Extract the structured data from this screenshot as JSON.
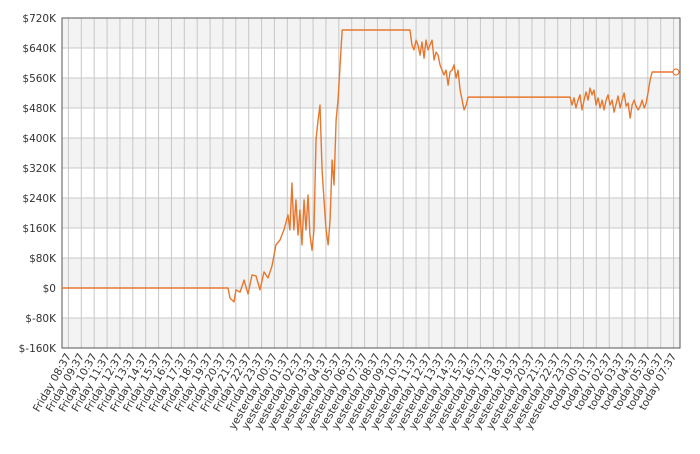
{
  "chart_data": {
    "type": "line",
    "color": "#e8772e",
    "grid": true,
    "x": [
      -0.5,
      12.39,
      12.55,
      12.86,
      13.01,
      13.33,
      13.64,
      13.95,
      14.26,
      14.57,
      14.88,
      15.19,
      15.5,
      15.81,
      16.12,
      16.43,
      16.74,
      17.05,
      17.2,
      17.36,
      17.51,
      17.67,
      17.83,
      17.98,
      18.14,
      18.3,
      18.45,
      18.61,
      18.76,
      18.92,
      19.07,
      19.23,
      19.39,
      19.54,
      19.7,
      19.85,
      20.01,
      20.17,
      20.32,
      20.48,
      20.63,
      20.79,
      20.94,
      21.1,
      21.26,
      26.53,
      26.68,
      26.84,
      27.0,
      27.15,
      27.31,
      27.46,
      27.62,
      27.77,
      27.93,
      28.08,
      28.24,
      28.4,
      28.55,
      28.71,
      28.86,
      29.02,
      29.17,
      29.33,
      29.49,
      29.64,
      29.8,
      29.95,
      30.11,
      30.26,
      30.42,
      30.58,
      30.73,
      30.89,
      31.04,
      38.96,
      39.11,
      39.27,
      39.42,
      39.58,
      39.73,
      39.89,
      40.05,
      40.2,
      40.36,
      40.51,
      40.67,
      40.82,
      40.98,
      41.14,
      41.29,
      41.45,
      41.6,
      41.76,
      41.91,
      42.07,
      42.23,
      42.38,
      42.54,
      42.69,
      42.85,
      43.0,
      43.16,
      43.32,
      43.47,
      43.63,
      43.78,
      43.94,
      44.09,
      44.25,
      44.41,
      44.56,
      44.72,
      44.87,
      45.03,
      45.18,
      45.34,
      47.19
    ],
    "values": [
      0,
      0,
      -27000,
      -37000,
      -5000,
      -11000,
      21000,
      -16000,
      35000,
      32000,
      -5000,
      43000,
      27000,
      59000,
      115000,
      128000,
      155000,
      195000,
      155000,
      280000,
      155000,
      235000,
      141000,
      208000,
      115000,
      235000,
      155000,
      248000,
      141000,
      101000,
      155000,
      395000,
      448000,
      488000,
      315000,
      235000,
      155000,
      115000,
      181000,
      341000,
      275000,
      448000,
      501000,
      595000,
      688000,
      688000,
      648000,
      635000,
      661000,
      648000,
      621000,
      656000,
      613000,
      661000,
      635000,
      648000,
      661000,
      608000,
      629000,
      621000,
      595000,
      581000,
      568000,
      581000,
      541000,
      576000,
      581000,
      595000,
      560000,
      581000,
      528000,
      501000,
      475000,
      488000,
      509000,
      509000,
      488000,
      507000,
      480000,
      501000,
      515000,
      475000,
      501000,
      523000,
      501000,
      533000,
      515000,
      528000,
      488000,
      507000,
      480000,
      501000,
      475000,
      501000,
      515000,
      488000,
      501000,
      469000,
      491000,
      512000,
      480000,
      501000,
      520000,
      485000,
      493000,
      453000,
      488000,
      501000,
      485000,
      475000,
      485000,
      501000,
      480000,
      493000,
      523000,
      555000,
      576000,
      576000
    ],
    "xlim": [
      -0.5,
      47.5
    ],
    "xticks": [
      {
        "value": 0,
        "label": "Friday 08:37"
      },
      {
        "value": 1,
        "label": "Friday 09:37"
      },
      {
        "value": 2,
        "label": "Friday 10:37"
      },
      {
        "value": 3,
        "label": "Friday 11:37"
      },
      {
        "value": 4,
        "label": "Friday 12:37"
      },
      {
        "value": 5,
        "label": "Friday 13:37"
      },
      {
        "value": 6,
        "label": "Friday 14:37"
      },
      {
        "value": 7,
        "label": "Friday 15:37"
      },
      {
        "value": 8,
        "label": "Friday 16:37"
      },
      {
        "value": 9,
        "label": "Friday 17:37"
      },
      {
        "value": 10,
        "label": "Friday 18:37"
      },
      {
        "value": 11,
        "label": "Friday 19:37"
      },
      {
        "value": 12,
        "label": "Friday 20:37"
      },
      {
        "value": 13,
        "label": "Friday 21:37"
      },
      {
        "value": 14,
        "label": "Friday 22:37"
      },
      {
        "value": 15,
        "label": "Friday 23:37"
      },
      {
        "value": 16,
        "label": "yesterday 00:37"
      },
      {
        "value": 17,
        "label": "yesterday 01:37"
      },
      {
        "value": 18,
        "label": "yesterday 02:37"
      },
      {
        "value": 19,
        "label": "yesterday 03:37"
      },
      {
        "value": 20,
        "label": "yesterday 04:37"
      },
      {
        "value": 21,
        "label": "yesterday 05:37"
      },
      {
        "value": 22,
        "label": "yesterday 06:37"
      },
      {
        "value": 23,
        "label": "yesterday 07:37"
      },
      {
        "value": 24,
        "label": "yesterday 08:37"
      },
      {
        "value": 25,
        "label": "yesterday 09:37"
      },
      {
        "value": 26,
        "label": "yesterday 10:37"
      },
      {
        "value": 27,
        "label": "yesterday 11:37"
      },
      {
        "value": 28,
        "label": "yesterday 12:37"
      },
      {
        "value": 29,
        "label": "yesterday 13:37"
      },
      {
        "value": 30,
        "label": "yesterday 14:37"
      },
      {
        "value": 31,
        "label": "yesterday 15:37"
      },
      {
        "value": 32,
        "label": "yesterday 16:37"
      },
      {
        "value": 33,
        "label": "yesterday 17:37"
      },
      {
        "value": 34,
        "label": "yesterday 18:37"
      },
      {
        "value": 35,
        "label": "yesterday 19:37"
      },
      {
        "value": 36,
        "label": "yesterday 20:37"
      },
      {
        "value": 37,
        "label": "yesterday 21:37"
      },
      {
        "value": 38,
        "label": "yesterday 22:37"
      },
      {
        "value": 39,
        "label": "yesterday 23:37"
      },
      {
        "value": 40,
        "label": "today 00:37"
      },
      {
        "value": 41,
        "label": "today 01:37"
      },
      {
        "value": 42,
        "label": "today 02:37"
      },
      {
        "value": 43,
        "label": "today 03:37"
      },
      {
        "value": 44,
        "label": "today 04:37"
      },
      {
        "value": 45,
        "label": "today 05:37"
      },
      {
        "value": 46,
        "label": "today 06:37"
      },
      {
        "value": 47,
        "label": "today 07:37"
      }
    ],
    "ylim": [
      -160000,
      720000
    ],
    "yticks": [
      {
        "value": -160000,
        "label": "$-160K"
      },
      {
        "value": -80000,
        "label": "$-80K"
      },
      {
        "value": 0,
        "label": "$0"
      },
      {
        "value": 80000,
        "label": "$80K"
      },
      {
        "value": 160000,
        "label": "$160K"
      },
      {
        "value": 240000,
        "label": "$240K"
      },
      {
        "value": 320000,
        "label": "$320K"
      },
      {
        "value": 400000,
        "label": "$400K"
      },
      {
        "value": 480000,
        "label": "$480K"
      },
      {
        "value": 560000,
        "label": "$560K"
      },
      {
        "value": 640000,
        "label": "$640K"
      },
      {
        "value": 720000,
        "label": "$720K"
      }
    ]
  }
}
